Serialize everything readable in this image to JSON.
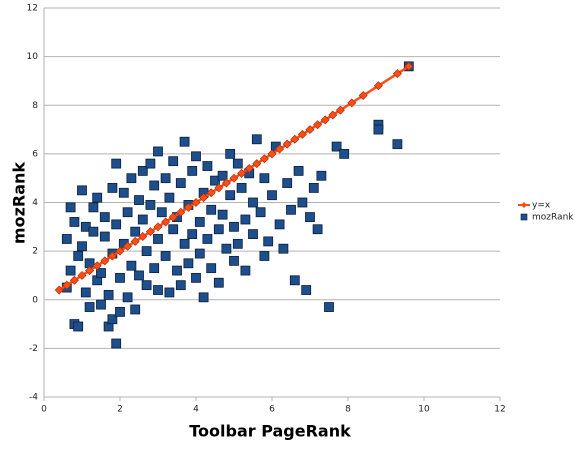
{
  "chart_data": {
    "type": "scatter",
    "x_label": "Toolbar PageRank",
    "y_label": "mozRank",
    "xlim": [
      0,
      12
    ],
    "ylim": [
      -4,
      12
    ],
    "xticks": [
      0,
      2,
      4,
      6,
      8,
      10,
      12
    ],
    "yticks": [
      -4,
      -2,
      0,
      2,
      4,
      6,
      8,
      10,
      12
    ],
    "grid": true,
    "legend": "right",
    "series": [
      {
        "name": "y=x",
        "color": "#ff4d1a",
        "line": true,
        "x": [
          0.4,
          0.6,
          0.8,
          1.0,
          1.2,
          1.4,
          1.6,
          1.8,
          2.0,
          2.2,
          2.4,
          2.6,
          2.8,
          3.0,
          3.2,
          3.4,
          3.6,
          3.8,
          4.0,
          4.2,
          4.4,
          4.6,
          4.8,
          5.0,
          5.2,
          5.4,
          5.6,
          5.8,
          6.0,
          6.2,
          6.4,
          6.6,
          6.8,
          7.0,
          7.2,
          7.4,
          7.6,
          7.8,
          8.1,
          8.4,
          8.8,
          9.3,
          9.6
        ],
        "values": [
          0.4,
          0.6,
          0.8,
          1.0,
          1.2,
          1.4,
          1.6,
          1.8,
          2.0,
          2.2,
          2.4,
          2.6,
          2.8,
          3.0,
          3.2,
          3.4,
          3.6,
          3.8,
          4.0,
          4.2,
          4.4,
          4.6,
          4.8,
          5.0,
          5.2,
          5.4,
          5.6,
          5.8,
          6.0,
          6.2,
          6.4,
          6.6,
          6.8,
          7.0,
          7.2,
          7.4,
          7.6,
          7.8,
          8.1,
          8.4,
          8.8,
          9.3,
          9.6
        ]
      },
      {
        "name": "mozRank",
        "color": "#1f4e8c",
        "line": false,
        "x": [
          0.6,
          0.7,
          0.6,
          0.7,
          0.8,
          0.8,
          0.9,
          0.9,
          1.0,
          1.0,
          1.1,
          1.1,
          1.2,
          1.2,
          1.3,
          1.3,
          1.4,
          1.4,
          1.5,
          1.5,
          1.6,
          1.6,
          1.7,
          1.7,
          1.8,
          1.8,
          1.8,
          1.9,
          1.9,
          1.9,
          2.0,
          2.0,
          2.1,
          2.1,
          2.2,
          2.2,
          2.3,
          2.3,
          2.4,
          2.4,
          2.5,
          2.5,
          2.6,
          2.6,
          2.7,
          2.7,
          2.8,
          2.8,
          2.9,
          2.9,
          3.0,
          3.0,
          3.0,
          3.1,
          3.2,
          3.2,
          3.3,
          3.3,
          3.4,
          3.4,
          3.5,
          3.5,
          3.6,
          3.6,
          3.7,
          3.7,
          3.8,
          3.8,
          3.9,
          3.9,
          4.0,
          4.0,
          4.1,
          4.1,
          4.2,
          4.2,
          4.3,
          4.3,
          4.4,
          4.4,
          4.5,
          4.6,
          4.6,
          4.7,
          4.7,
          4.8,
          4.9,
          4.9,
          5.0,
          5.0,
          5.1,
          5.1,
          5.2,
          5.3,
          5.3,
          5.4,
          5.5,
          5.5,
          5.6,
          5.7,
          5.8,
          5.8,
          5.9,
          6.0,
          6.1,
          6.2,
          6.3,
          6.4,
          6.5,
          6.6,
          6.7,
          6.8,
          6.9,
          7.0,
          7.1,
          7.2,
          7.3,
          7.5,
          7.7,
          7.9,
          8.8,
          8.8,
          9.3,
          9.6
        ],
        "values": [
          0.5,
          1.2,
          2.5,
          3.8,
          3.2,
          -1.0,
          -1.1,
          1.8,
          4.5,
          2.2,
          0.3,
          3.0,
          1.5,
          -0.3,
          3.8,
          2.8,
          0.8,
          4.2,
          1.1,
          -0.2,
          2.6,
          3.4,
          -1.1,
          0.2,
          -0.8,
          1.9,
          4.6,
          5.6,
          -1.8,
          3.1,
          0.9,
          -0.5,
          2.3,
          4.4,
          3.6,
          0.1,
          1.4,
          5.0,
          2.8,
          -0.4,
          4.1,
          1.0,
          3.3,
          5.3,
          0.6,
          2.0,
          5.6,
          3.9,
          1.3,
          4.7,
          6.1,
          2.5,
          0.4,
          3.6,
          1.8,
          5.0,
          0.3,
          4.2,
          2.9,
          5.7,
          1.2,
          3.4,
          0.6,
          4.8,
          2.3,
          6.5,
          3.9,
          1.5,
          5.3,
          2.7,
          0.9,
          5.9,
          3.2,
          1.9,
          4.4,
          0.1,
          2.5,
          5.5,
          3.7,
          1.3,
          4.9,
          2.9,
          0.7,
          5.1,
          3.5,
          2.1,
          6.0,
          4.3,
          1.6,
          3.0,
          5.6,
          2.3,
          4.6,
          3.3,
          1.2,
          5.2,
          2.7,
          4.0,
          6.6,
          3.6,
          1.8,
          5.0,
          2.4,
          4.3,
          6.3,
          3.1,
          2.1,
          4.8,
          3.7,
          0.8,
          5.3,
          4.0,
          0.4,
          3.4,
          4.6,
          2.9,
          5.1,
          -0.3,
          6.3,
          6.0,
          7.2,
          7.0,
          6.4,
          9.6
        ]
      }
    ]
  }
}
